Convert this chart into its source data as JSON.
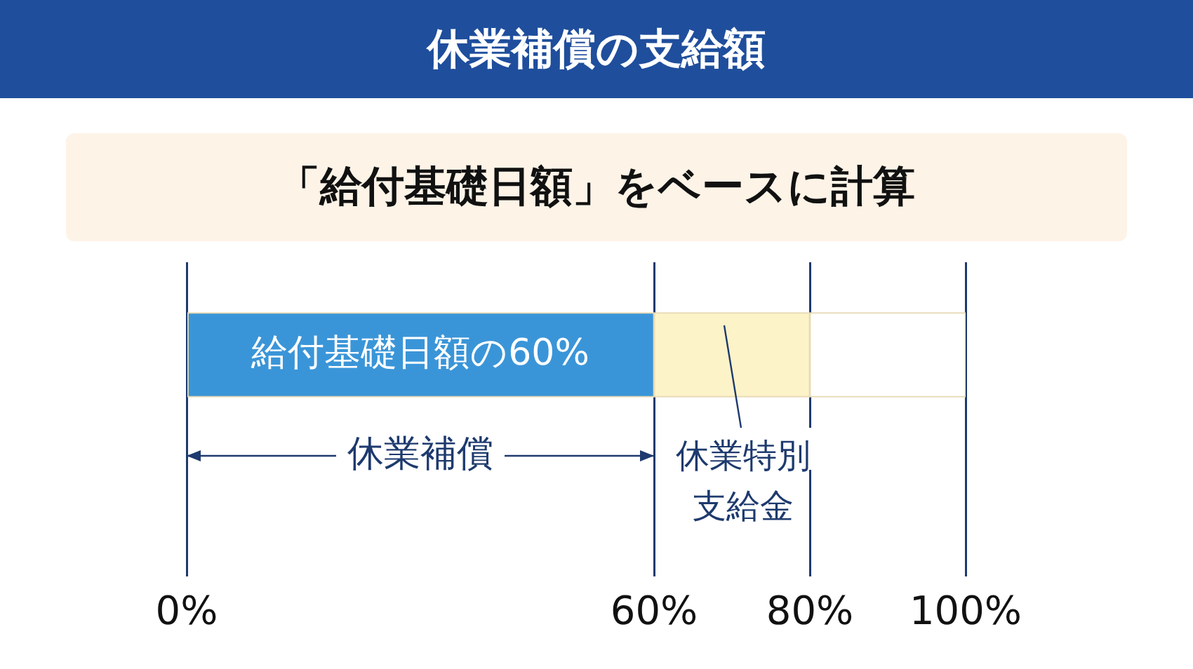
{
  "chart_data": {
    "type": "bar",
    "orientation": "horizontal",
    "stacked": true,
    "title": "休業補償の支給額",
    "subtitle": "「給付基礎日額」をベースに計算",
    "categories": [
      null
    ],
    "series": [
      {
        "color": "#3a95d8",
        "values": [
          60
        ]
      },
      {
        "color": "#fdf3c8",
        "values": [
          20
        ]
      },
      {
        "color": "#ffffff",
        "values": [
          20
        ]
      }
    ],
    "xlim": [
      0,
      100
    ],
    "xticks": [
      {
        "value": 0,
        "label": "0%"
      },
      {
        "value": 60,
        "label": "60%"
      },
      {
        "value": 80,
        "label": "80%"
      },
      {
        "value": 100,
        "label": "100%"
      }
    ],
    "grid": "x",
    "tick_labels": "x",
    "annotations": [
      "給付基礎日額の60%",
      "休業補償",
      "休業特別支給金"
    ]
  }
}
